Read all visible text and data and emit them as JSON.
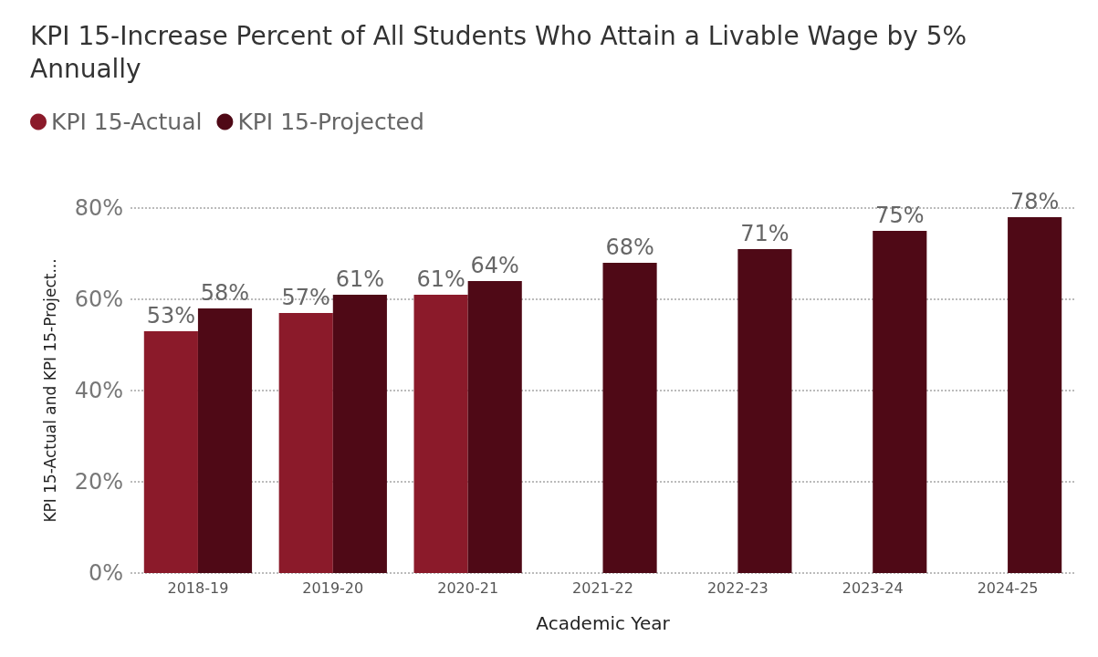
{
  "chart_data": {
    "type": "bar",
    "title": "KPI 15-Increase Percent of All Students Who Attain a Livable Wage by 5% Annually",
    "xlabel": "Academic Year",
    "ylabel": "KPI 15-Actual and KPI 15-Project...",
    "categories": [
      "2018-19",
      "2019-20",
      "2020-21",
      "2021-22",
      "2022-23",
      "2023-24",
      "2024-25"
    ],
    "series": [
      {
        "name": "KPI 15-Actual",
        "color": "#8b1a2a",
        "values": [
          53,
          57,
          61,
          null,
          null,
          null,
          null
        ],
        "value_labels": [
          "53%",
          "57%",
          "61%",
          null,
          null,
          null,
          null
        ]
      },
      {
        "name": "KPI 15-Projected",
        "color": "#4f0916",
        "values": [
          58,
          61,
          64,
          68,
          71,
          75,
          78
        ],
        "value_labels": [
          "58%",
          "61%",
          "64%",
          "68%",
          "71%",
          "75%",
          "78%"
        ]
      }
    ],
    "ylim": [
      0,
      80
    ],
    "yticks": [
      {
        "value": 0,
        "label": "0%"
      },
      {
        "value": 20,
        "label": "20%"
      },
      {
        "value": 40,
        "label": "40%"
      },
      {
        "value": 60,
        "label": "60%"
      },
      {
        "value": 80,
        "label": "80%"
      }
    ],
    "grid": "y",
    "legend": "top left"
  }
}
